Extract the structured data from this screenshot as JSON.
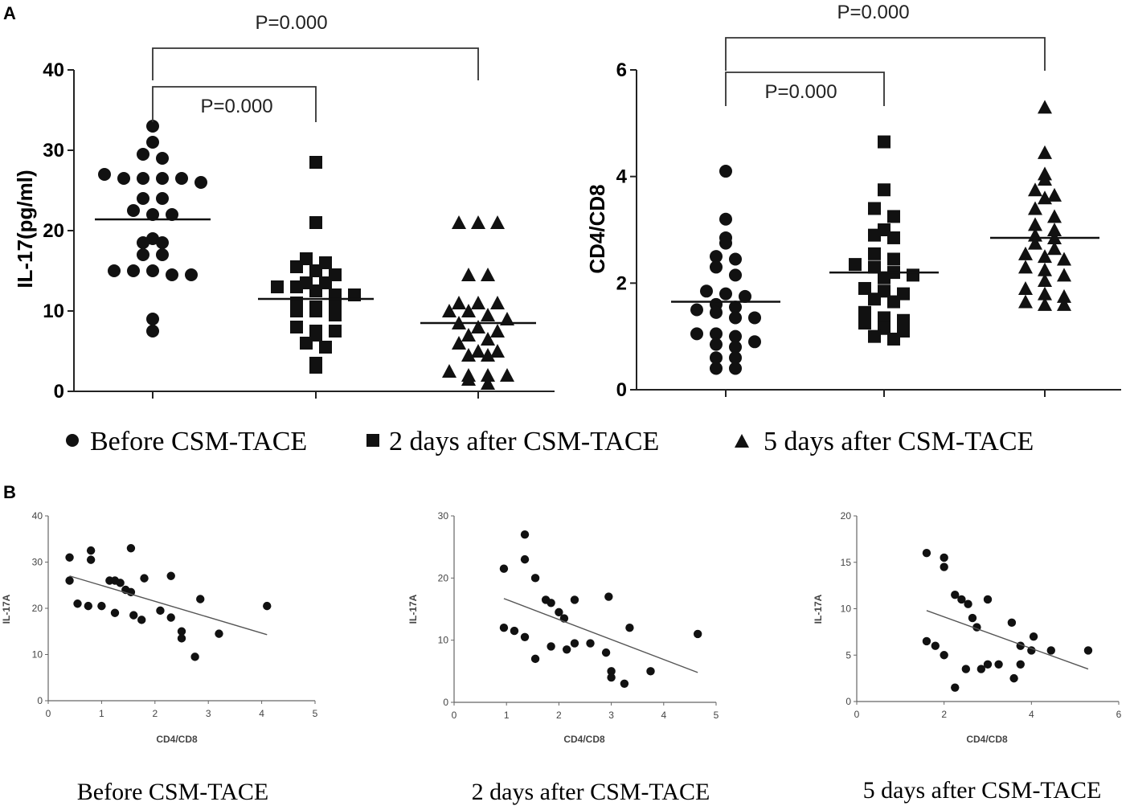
{
  "panel_a_label": "A",
  "panel_b_label": "B",
  "legend": [
    {
      "marker": "circle",
      "label": "Before CSM-TACE"
    },
    {
      "marker": "square",
      "label": "2 days after CSM-TACE"
    },
    {
      "marker": "triangle",
      "label": "5 days after CSM-TACE"
    }
  ],
  "chart_data": [
    {
      "id": "A-left",
      "type": "scatter",
      "ylabel": "IL-17(pg/ml)",
      "ylim": [
        0,
        40
      ],
      "yticks": [
        0,
        10,
        20,
        30,
        40
      ],
      "groups": [
        {
          "name": "Before CSM-TACE",
          "marker": "circle",
          "mean": 21.4,
          "values": [
            33,
            31,
            29.5,
            29,
            27,
            26.5,
            26.5,
            26.5,
            26.5,
            26,
            24,
            24,
            22.5,
            22,
            22,
            19,
            18.5,
            18.5,
            17,
            17,
            15,
            15,
            15,
            14.5,
            14.5,
            9,
            7.5
          ]
        },
        {
          "name": "2 days after CSM-TACE",
          "marker": "square",
          "mean": 11.5,
          "values": [
            28.5,
            21,
            16.5,
            16,
            15.5,
            15,
            14.5,
            13.5,
            13.5,
            13,
            13,
            12.5,
            12,
            12,
            11,
            10.5,
            10.5,
            10,
            10,
            9.5,
            8,
            7.5,
            7.5,
            7,
            6,
            5.5,
            3.5,
            3
          ]
        },
        {
          "name": "5 days after CSM-TACE",
          "marker": "triangle",
          "mean": 8.5,
          "values": [
            21,
            21,
            21,
            14.5,
            14.5,
            11,
            11,
            11,
            10,
            10,
            9.5,
            9,
            8.5,
            8,
            7.5,
            7,
            6.5,
            6,
            5,
            5,
            4.5,
            4.5,
            2.5,
            2,
            2,
            2,
            1.5,
            1
          ]
        }
      ],
      "comparisons": [
        {
          "from": 0,
          "to": 1,
          "label": "P=0.000"
        },
        {
          "from": 0,
          "to": 2,
          "label": "P=0.000"
        }
      ]
    },
    {
      "id": "A-right",
      "type": "scatter",
      "ylabel": "CD4/CD8",
      "ylim": [
        0,
        6
      ],
      "yticks": [
        0,
        2,
        4,
        6
      ],
      "groups": [
        {
          "name": "Before CSM-TACE",
          "marker": "circle",
          "mean": 1.65,
          "values": [
            4.1,
            3.2,
            2.85,
            2.75,
            2.5,
            2.45,
            2.3,
            2.15,
            1.85,
            1.8,
            1.75,
            1.6,
            1.55,
            1.5,
            1.45,
            1.35,
            1.35,
            1.05,
            1.05,
            1.0,
            0.9,
            0.85,
            0.8,
            0.6,
            0.6,
            0.4,
            0.4
          ]
        },
        {
          "name": "2 days after CSM-TACE",
          "marker": "square",
          "mean": 2.2,
          "values": [
            4.65,
            3.75,
            3.4,
            3.25,
            3.0,
            2.9,
            2.85,
            2.55,
            2.45,
            2.35,
            2.3,
            2.2,
            2.15,
            2.1,
            1.9,
            1.85,
            1.8,
            1.7,
            1.65,
            1.45,
            1.35,
            1.3,
            1.25,
            1.15,
            1.1,
            1.0,
            0.95
          ]
        },
        {
          "name": "5 days after CSM-TACE",
          "marker": "triangle",
          "mean": 2.85,
          "values": [
            5.3,
            4.45,
            4.05,
            3.95,
            3.75,
            3.65,
            3.6,
            3.4,
            3.25,
            3.1,
            3.0,
            2.9,
            2.85,
            2.75,
            2.65,
            2.55,
            2.5,
            2.45,
            2.3,
            2.25,
            2.15,
            2.05,
            1.9,
            1.8,
            1.75,
            1.65,
            1.6,
            1.6
          ]
        }
      ],
      "comparisons": [
        {
          "from": 0,
          "to": 1,
          "label": "P=0.000"
        },
        {
          "from": 0,
          "to": 2,
          "label": "P=0.000"
        }
      ]
    },
    {
      "id": "B-1",
      "type": "scatter",
      "title": "Before CSM-TACE",
      "xlabel": "CD4/CD8",
      "ylabel": "IL-17A",
      "xlim": [
        0,
        5
      ],
      "ylim": [
        0,
        40
      ],
      "xticks": [
        0,
        1,
        2,
        3,
        4,
        5
      ],
      "yticks": [
        0,
        10,
        20,
        30,
        40
      ],
      "points": [
        [
          0.4,
          31
        ],
        [
          0.4,
          26
        ],
        [
          0.8,
          32.5
        ],
        [
          0.8,
          30.5
        ],
        [
          1.55,
          33
        ],
        [
          0.55,
          21
        ],
        [
          0.75,
          20.5
        ],
        [
          1.0,
          20.5
        ],
        [
          1.15,
          26
        ],
        [
          1.25,
          26
        ],
        [
          1.35,
          25.5
        ],
        [
          1.45,
          24
        ],
        [
          1.55,
          23.5
        ],
        [
          1.25,
          19
        ],
        [
          1.6,
          18.5
        ],
        [
          1.75,
          17.5
        ],
        [
          1.8,
          26.5
        ],
        [
          2.1,
          19.5
        ],
        [
          2.3,
          27
        ],
        [
          2.3,
          18
        ],
        [
          2.5,
          15
        ],
        [
          2.5,
          13.5
        ],
        [
          2.75,
          9.5
        ],
        [
          2.85,
          22
        ],
        [
          3.2,
          14.5
        ],
        [
          4.1,
          20.5
        ]
      ],
      "fit": [
        [
          0.4,
          27
        ],
        [
          4.1,
          14.3
        ]
      ]
    },
    {
      "id": "B-2",
      "type": "scatter",
      "title": "2 days after CSM-TACE",
      "xlabel": "CD4/CD8",
      "ylabel": "IL-17A",
      "xlim": [
        0,
        5
      ],
      "ylim": [
        0,
        30
      ],
      "xticks": [
        0,
        1,
        2,
        3,
        4,
        5
      ],
      "yticks": [
        0,
        10,
        20,
        30
      ],
      "points": [
        [
          0.95,
          21.5
        ],
        [
          0.95,
          12
        ],
        [
          1.15,
          11.5
        ],
        [
          1.35,
          10.5
        ],
        [
          1.35,
          23
        ],
        [
          1.35,
          27
        ],
        [
          1.55,
          20
        ],
        [
          1.55,
          7
        ],
        [
          1.75,
          16.5
        ],
        [
          1.85,
          16
        ],
        [
          1.85,
          9
        ],
        [
          2.0,
          14.5
        ],
        [
          2.1,
          13.5
        ],
        [
          2.15,
          8.5
        ],
        [
          2.3,
          16.5
        ],
        [
          2.3,
          9.5
        ],
        [
          2.6,
          9.5
        ],
        [
          2.9,
          8
        ],
        [
          2.95,
          17
        ],
        [
          3.0,
          5
        ],
        [
          3.0,
          4
        ],
        [
          3.25,
          3
        ],
        [
          3.35,
          12
        ],
        [
          3.75,
          5
        ],
        [
          4.65,
          11
        ]
      ],
      "fit": [
        [
          0.95,
          16.7
        ],
        [
          4.65,
          4.8
        ]
      ]
    },
    {
      "id": "B-3",
      "type": "scatter",
      "title": "5 days after CSM-TACE",
      "xlabel": "CD4/CD8",
      "ylabel": "IL-17A",
      "xlim": [
        0,
        6
      ],
      "ylim": [
        0,
        20
      ],
      "xticks": [
        0,
        2,
        4,
        6
      ],
      "yticks": [
        0,
        5,
        10,
        15,
        20
      ],
      "points": [
        [
          1.6,
          16
        ],
        [
          1.6,
          6.5
        ],
        [
          1.8,
          6
        ],
        [
          2.0,
          15.5
        ],
        [
          2.0,
          14.5
        ],
        [
          2.0,
          5
        ],
        [
          2.25,
          11.5
        ],
        [
          2.25,
          1.5
        ],
        [
          2.4,
          11
        ],
        [
          2.5,
          3.5
        ],
        [
          2.55,
          10.5
        ],
        [
          2.65,
          9
        ],
        [
          2.75,
          8
        ],
        [
          2.85,
          3.5
        ],
        [
          3.0,
          11
        ],
        [
          3.0,
          4
        ],
        [
          3.25,
          4
        ],
        [
          3.55,
          8.5
        ],
        [
          3.6,
          2.5
        ],
        [
          3.75,
          6
        ],
        [
          3.75,
          4
        ],
        [
          4.0,
          5.5
        ],
        [
          4.05,
          7
        ],
        [
          4.45,
          5.5
        ],
        [
          5.3,
          5.5
        ]
      ],
      "fit": [
        [
          1.6,
          9.8
        ],
        [
          5.3,
          3.5
        ]
      ]
    }
  ]
}
